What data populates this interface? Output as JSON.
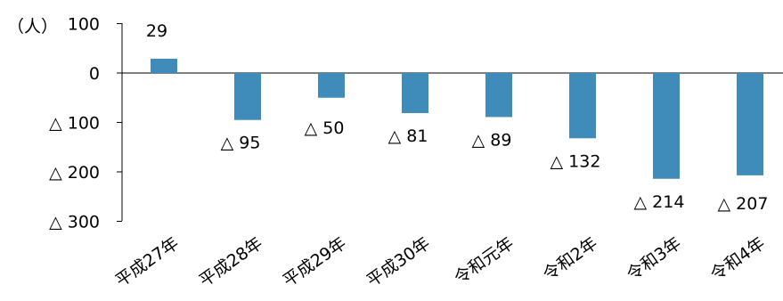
{
  "chart_data": {
    "type": "bar",
    "unit_label": "（人）",
    "categories": [
      "平成27年",
      "平成28年",
      "平成29年",
      "平成30年",
      "令和元年",
      "令和2年",
      "令和3年",
      "令和4年"
    ],
    "values": [
      29,
      -95,
      -50,
      -81,
      -89,
      -132,
      -214,
      -207
    ],
    "data_labels": [
      "29",
      "△ 95",
      "△ 50",
      "△ 81",
      "△ 89",
      "△ 132",
      "△ 214",
      "△ 207"
    ],
    "y_ticks": [
      {
        "value": 100,
        "label": "100"
      },
      {
        "value": 0,
        "label": "0"
      },
      {
        "value": -100,
        "label": "△ 100"
      },
      {
        "value": -200,
        "label": "△ 200"
      },
      {
        "value": -300,
        "label": "△ 300"
      }
    ],
    "ylim": [
      -300,
      100
    ],
    "bar_color": "#3f8cbb",
    "grid": false
  }
}
